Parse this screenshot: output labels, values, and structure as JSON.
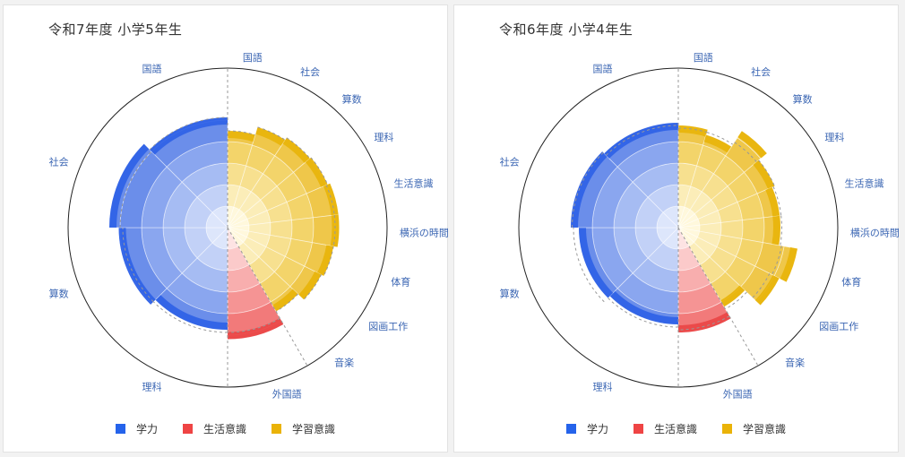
{
  "colors": {
    "ability": "#2563eb",
    "life": "#ef4444",
    "study": "#eab308",
    "label": "#3b66b3"
  },
  "chart_data": [
    {
      "type": "polar-area",
      "title": "令和7年度 小学5年生",
      "labels": [
        "国語",
        "社会",
        "算数",
        "理科",
        "生活意識",
        "横浜の時間",
        "体育",
        "図画工作",
        "音楽",
        "外国語",
        "理科",
        "算数",
        "社会",
        "国語"
      ],
      "categories": [
        {
          "label": "国語",
          "group": "study",
          "value": 0.72,
          "ref": 0.72
        },
        {
          "label": "社会",
          "group": "study",
          "value": 0.78,
          "ref": 0.78
        },
        {
          "label": "算数",
          "group": "study",
          "value": 0.8,
          "ref": 0.8
        },
        {
          "label": "理科",
          "group": "study",
          "value": 0.81,
          "ref": 0.81
        },
        {
          "label": "外国語",
          "group": "study",
          "value": 0.83,
          "ref": 0.8
        },
        {
          "label": "音楽",
          "group": "study",
          "value": 0.83,
          "ref": 0.8
        },
        {
          "label": "図画工作",
          "group": "study",
          "value": 0.8,
          "ref": 0.8
        },
        {
          "label": "体育",
          "group": "study",
          "value": 0.78,
          "ref": 0.78
        },
        {
          "label": "横浜の時間",
          "group": "study",
          "value": 0.72,
          "ref": 0.72
        },
        {
          "label": "生活意識",
          "group": "life",
          "value": 0.83,
          "ref": 0.78
        },
        {
          "label": "理科",
          "group": "ability",
          "value": 0.76,
          "ref": 0.78
        },
        {
          "label": "算数",
          "group": "ability",
          "value": 0.81,
          "ref": 0.78
        },
        {
          "label": "社会",
          "group": "ability",
          "value": 0.88,
          "ref": 0.8
        },
        {
          "label": "国語",
          "group": "ability",
          "value": 0.82,
          "ref": 0.82
        }
      ],
      "legend": [
        "学力",
        "生活意識",
        "学習意識"
      ]
    },
    {
      "type": "polar-area",
      "title": "令和6年度 小学4年生",
      "labels": [
        "国語",
        "社会",
        "算数",
        "理科",
        "生活意識",
        "横浜の時間",
        "体育",
        "図画工作",
        "音楽",
        "外国語",
        "理科",
        "算数",
        "社会",
        "国語"
      ],
      "categories": [
        {
          "label": "国語",
          "group": "study",
          "value": 0.76,
          "ref": 0.74
        },
        {
          "label": "社会",
          "group": "study",
          "value": 0.72,
          "ref": 0.74
        },
        {
          "label": "算数",
          "group": "study",
          "value": 0.86,
          "ref": 0.76
        },
        {
          "label": "理科",
          "group": "study",
          "value": 0.78,
          "ref": 0.78
        },
        {
          "label": "外国語",
          "group": "study",
          "value": 0.76,
          "ref": 0.77
        },
        {
          "label": "音楽",
          "group": "study",
          "value": 0.76,
          "ref": 0.77
        },
        {
          "label": "図画工作",
          "group": "study",
          "value": 0.9,
          "ref": 0.78
        },
        {
          "label": "体育",
          "group": "study",
          "value": 0.84,
          "ref": 0.76
        },
        {
          "label": "横浜の時間",
          "group": "study",
          "value": 0.68,
          "ref": 0.7
        },
        {
          "label": "生活意識",
          "group": "life",
          "value": 0.78,
          "ref": 0.76
        },
        {
          "label": "理科",
          "group": "ability",
          "value": 0.72,
          "ref": 0.74
        },
        {
          "label": "算数",
          "group": "ability",
          "value": 0.74,
          "ref": 0.78
        },
        {
          "label": "社会",
          "group": "ability",
          "value": 0.8,
          "ref": 0.79
        },
        {
          "label": "国語",
          "group": "ability",
          "value": 0.78,
          "ref": 0.76
        }
      ],
      "legend": [
        "学力",
        "生活意識",
        "学習意識"
      ]
    }
  ]
}
